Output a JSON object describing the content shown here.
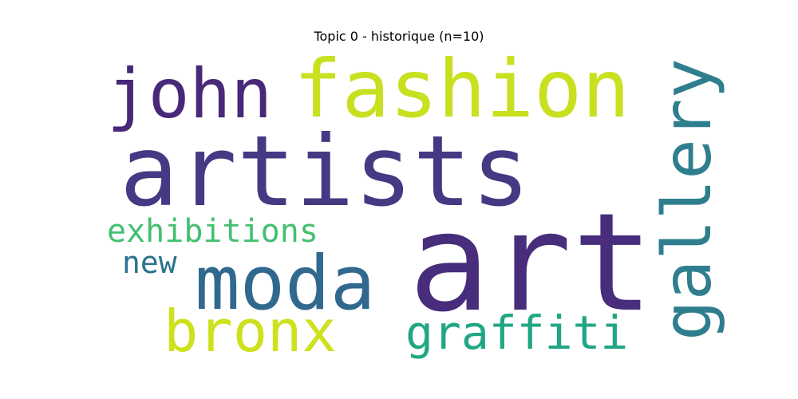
{
  "chart_data": {
    "type": "wordcloud",
    "title": "Topic 0 - historique (n=10)",
    "words": [
      {
        "text": "art",
        "weight": 1.0,
        "color": "#472d7b",
        "orientation": "horizontal"
      },
      {
        "text": "artists",
        "weight": 0.8,
        "color": "#443a83",
        "orientation": "horizontal"
      },
      {
        "text": "fashion",
        "weight": 0.62,
        "color": "#c8e020",
        "orientation": "horizontal"
      },
      {
        "text": "moda",
        "weight": 0.55,
        "color": "#31688e",
        "orientation": "horizontal"
      },
      {
        "text": "gallery",
        "weight": 0.48,
        "color": "#2f7e8e",
        "orientation": "vertical"
      },
      {
        "text": "john",
        "weight": 0.45,
        "color": "#482878",
        "orientation": "horizontal"
      },
      {
        "text": "bronx",
        "weight": 0.4,
        "color": "#cde11d",
        "orientation": "horizontal"
      },
      {
        "text": "graffiti",
        "weight": 0.32,
        "color": "#21a685",
        "orientation": "horizontal"
      },
      {
        "text": "exhibitions",
        "weight": 0.26,
        "color": "#44bf70",
        "orientation": "horizontal"
      },
      {
        "text": "new",
        "weight": 0.22,
        "color": "#2c728e",
        "orientation": "horizontal"
      }
    ]
  }
}
